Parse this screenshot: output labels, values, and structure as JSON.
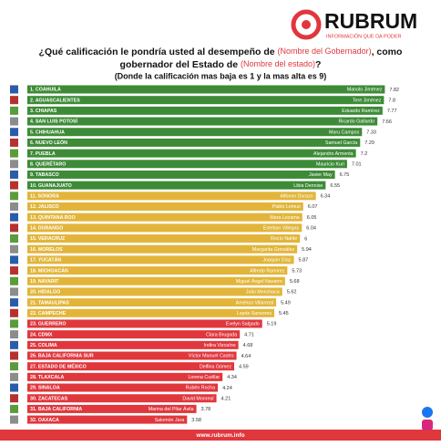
{
  "brand": {
    "name": "RUBRUM",
    "tagline": "INFORMACIÓN QUE DA PODER"
  },
  "footer": "www.rubrum.info",
  "chart_data": {
    "type": "bar",
    "title_parts": [
      "¿Qué calificación le pondría usted al desempeño de ",
      "(Nombre del Gobernador)",
      ", como",
      "gobernador del Estado de ",
      "(Nombre del estado)",
      "?"
    ],
    "subtitle": "(Donde la calificación mas baja es 1 y la mas alta es 9)",
    "categories": [
      "1. COAHUILA",
      "2. AGUASCALIENTES",
      "3. CHIAPAS",
      "4. SAN LUIS POTOSÍ",
      "5. CHIHUAHUA",
      "6. NUEVO LEÓN",
      "7. PUEBLA",
      "8. QUERÉTARO",
      "9. TABASCO",
      "10. GUANAJUATO",
      "11. SONORA",
      "12. JALISCO",
      "13. QUINTANA ROO",
      "14. DURANGO",
      "15. VERACRUZ",
      "16. MORELOS",
      "17. YUCATÁN",
      "18. MICHOACÁN",
      "19. NAYARIT",
      "20. HIDALGO",
      "21. TAMAULIPAS",
      "22. CAMPECHE",
      "23. GUERRERO",
      "24. CDMX",
      "25. COLIMA",
      "26. BAJA CALIFORNIA SUR",
      "27. ESTADO DE MÉXICO",
      "28. TLAXCALA",
      "29. SINALOA",
      "30. ZACATECAS",
      "31. BAJA CALIFORNIA",
      "32. OAXACA"
    ],
    "governors": [
      "Manolo Jiménez",
      "Tere Jiménez",
      "Eduardo Ramírez",
      "Ricardo Gallardo",
      "Maru Campos",
      "Samuel García",
      "Alejandro Armenta",
      "Mauricio Kuri",
      "Javier May",
      "Libia Dennise",
      "Alfonso Durazo",
      "Pablo Lemus",
      "Mara Lezama",
      "Esteban Villegas",
      "Rocío Nahle",
      "Margarita González",
      "Joaquín Díaz",
      "Alfredo Ramírez",
      "Miguel Ángel Navarro",
      "Julio Menchaca",
      "Américo Villarreal",
      "Layda Sansores",
      "Evelyn Salgado",
      "Clara Brugada",
      "Indira Vizcaíno",
      "Víctor Manuel Castro",
      "Delfina Gómez",
      "Lorena Cuéllar",
      "Rubén Rocha",
      "David Monreal",
      "Marina del Pilar Ávila",
      "Salomón Jara"
    ],
    "values": [
      7.82,
      7.8,
      7.77,
      7.66,
      7.33,
      7.29,
      7.2,
      7.01,
      6.75,
      6.55,
      6.34,
      6.07,
      6.05,
      6.04,
      6,
      5.94,
      5.87,
      5.73,
      5.68,
      5.62,
      5.49,
      5.45,
      5.19,
      4.71,
      4.68,
      4.64,
      4.59,
      4.34,
      4.24,
      4.21,
      3.78,
      3.58
    ],
    "colors": [
      "#3d8b37",
      "#3d8b37",
      "#3d8b37",
      "#3d8b37",
      "#3d8b37",
      "#3d8b37",
      "#3d8b37",
      "#3d8b37",
      "#3d8b37",
      "#3d8b37",
      "#e2b53a",
      "#e2b53a",
      "#e2b53a",
      "#e2b53a",
      "#e2b53a",
      "#e2b53a",
      "#e2b53a",
      "#e2b53a",
      "#e2b53a",
      "#e2b53a",
      "#e2b53a",
      "#e2b53a",
      "#e0373d",
      "#e0373d",
      "#e0373d",
      "#e0373d",
      "#e0373d",
      "#e0373d",
      "#e0373d",
      "#e0373d",
      "#e0373d",
      "#e0373d"
    ]
  }
}
